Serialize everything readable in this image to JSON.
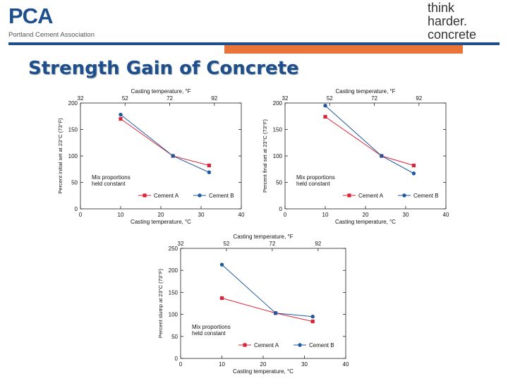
{
  "header": {
    "pca_mark": "PCA",
    "pca_subtitle": "Portland Cement Association",
    "think_line1": "think",
    "think_line2": "harder.",
    "think_line3": "concrete"
  },
  "colors": {
    "accent_blue": "#1f4e8c",
    "accent_orange": "#e9743a",
    "series_a": "#d9253a",
    "series_b": "#1f5a9e"
  },
  "title": "Strength Gain of Concrete",
  "chart_data": [
    {
      "type": "line",
      "ylabel": "Percent initial set at 23°C (73°F)",
      "xlabel": "Casting temperature, °C",
      "x2label": "Casting temperature, °F",
      "xlim": [
        0,
        40
      ],
      "ylim": [
        0,
        200
      ],
      "xticks": [
        0,
        10,
        20,
        30,
        40
      ],
      "yticks": [
        0,
        50,
        100,
        150,
        200
      ],
      "fticks": [
        {
          "label": "32",
          "c": 0
        },
        {
          "label": "52",
          "c": 11.1
        },
        {
          "label": "72",
          "c": 22.2
        },
        {
          "label": "92",
          "c": 33.3
        }
      ],
      "annotation": [
        "Mix proportions",
        "held constant"
      ],
      "series": [
        {
          "name": "Cement A",
          "marker": "square",
          "x": [
            10,
            23,
            32
          ],
          "y": [
            170,
            100,
            82
          ]
        },
        {
          "name": "Cement B",
          "marker": "circle",
          "x": [
            10,
            23,
            32
          ],
          "y": [
            178,
            100,
            69
          ]
        }
      ]
    },
    {
      "type": "line",
      "ylabel": "Percent final set at 23°C (73°F)",
      "xlabel": "Casting temperature, °C",
      "x2label": "Casting temperature, °F",
      "xlim": [
        0,
        40
      ],
      "ylim": [
        0,
        200
      ],
      "xticks": [
        0,
        10,
        20,
        30,
        40
      ],
      "yticks": [
        0,
        50,
        100,
        150,
        200
      ],
      "fticks": [
        {
          "label": "32",
          "c": 0
        },
        {
          "label": "52",
          "c": 11.1
        },
        {
          "label": "72",
          "c": 22.2
        },
        {
          "label": "92",
          "c": 33.3
        }
      ],
      "annotation": [
        "Mix proportions",
        "held constant"
      ],
      "series": [
        {
          "name": "Cement A",
          "marker": "square",
          "x": [
            10,
            24,
            32
          ],
          "y": [
            174,
            100,
            82
          ]
        },
        {
          "name": "Cement B",
          "marker": "circle",
          "x": [
            10,
            24,
            32
          ],
          "y": [
            195,
            100,
            67
          ]
        }
      ]
    },
    {
      "type": "line",
      "ylabel": "Percent slump at 23°C (73°F)",
      "xlabel": "Casting temperature, °C",
      "x2label": "Casting temperature, °F",
      "xlim": [
        0,
        40
      ],
      "ylim": [
        0,
        250
      ],
      "xticks": [
        0,
        10,
        20,
        30,
        40
      ],
      "yticks": [
        0,
        50,
        100,
        150,
        200,
        250
      ],
      "fticks": [
        {
          "label": "32",
          "c": 0
        },
        {
          "label": "52",
          "c": 11.1
        },
        {
          "label": "72",
          "c": 22.2
        },
        {
          "label": "92",
          "c": 33.3
        }
      ],
      "annotation": [
        "Mix proportions",
        "held constant"
      ],
      "series": [
        {
          "name": "Cement A",
          "marker": "square",
          "x": [
            10,
            23,
            32
          ],
          "y": [
            137,
            103,
            84
          ]
        },
        {
          "name": "Cement B",
          "marker": "circle",
          "x": [
            10,
            23,
            32
          ],
          "y": [
            213,
            103,
            95
          ]
        }
      ]
    }
  ]
}
